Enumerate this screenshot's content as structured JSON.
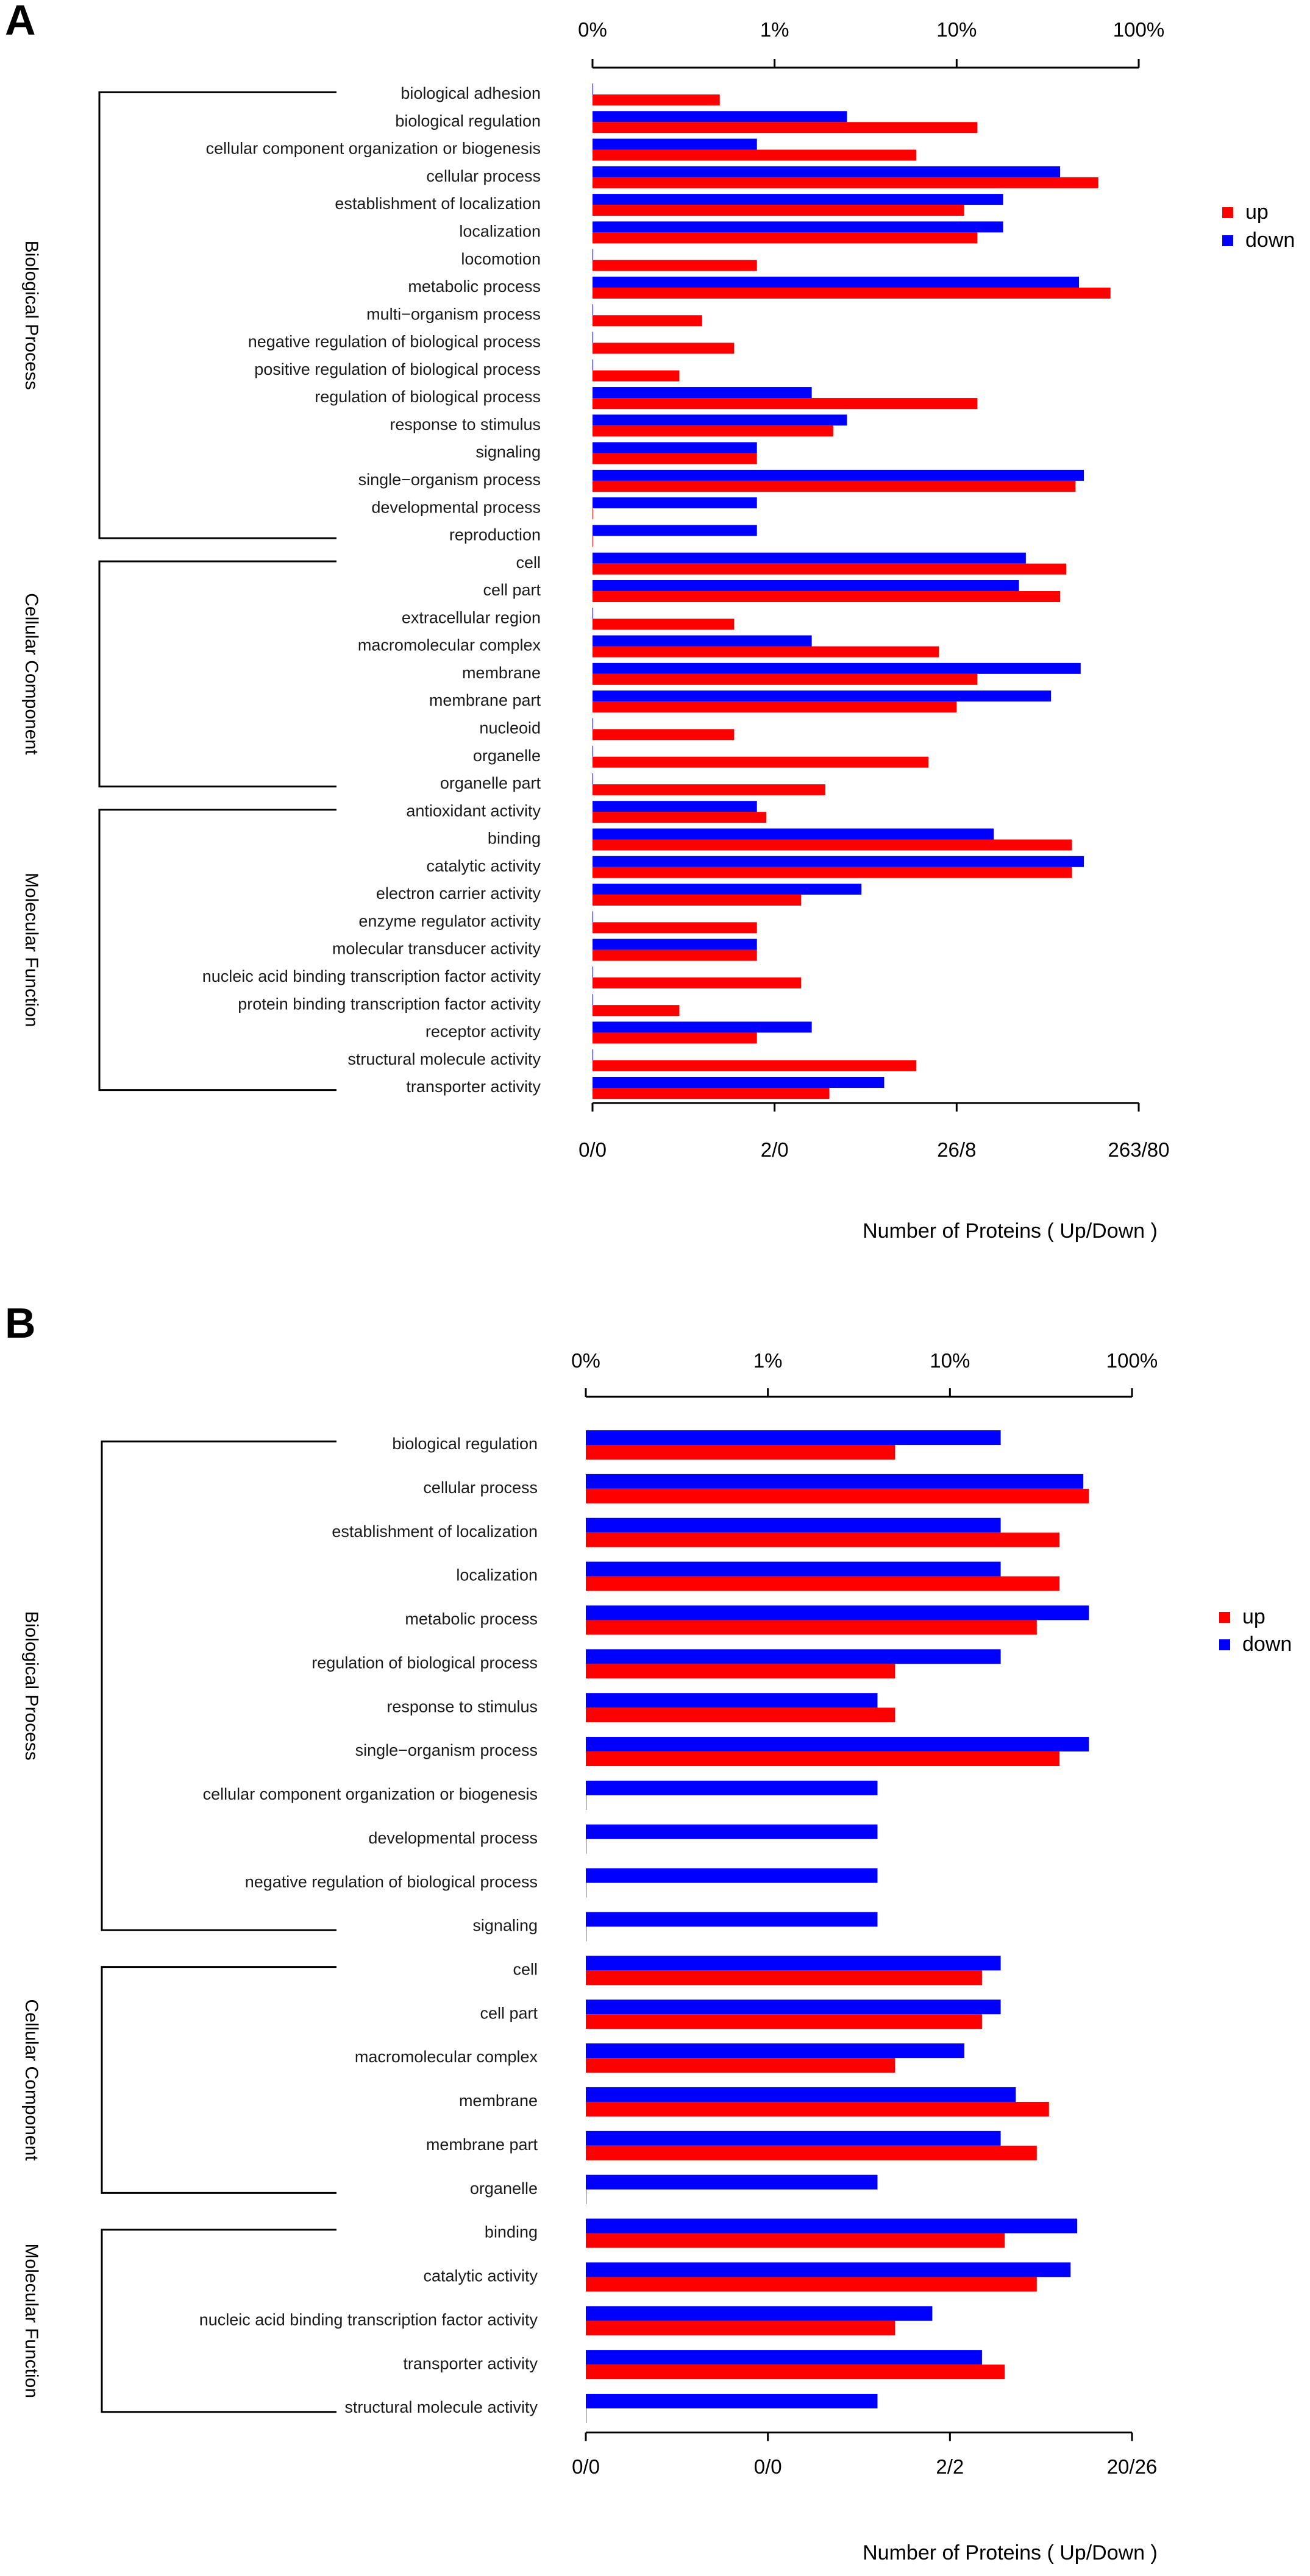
{
  "chart_data": [
    {
      "panel": "A",
      "type": "bar",
      "orientation": "horizontal",
      "scale": "log",
      "top_axis_ticks": [
        "0%",
        "1%",
        "10%",
        "100%"
      ],
      "bottom_axis_ticks": [
        "0/0",
        "2/0",
        "26/8",
        "263/80"
      ],
      "xlabel": "Number of Proteins ( Up/Down )",
      "legend": {
        "position": "top-right",
        "items": [
          {
            "name": "up",
            "color": "#ff0000"
          },
          {
            "name": "down",
            "color": "#0000ff"
          }
        ]
      },
      "categories": [
        "biological adhesion",
        "biological regulation",
        "cellular component organization or biogenesis",
        "cellular process",
        "establishment of localization",
        "localization",
        "locomotion",
        "metabolic process",
        "multi−organism process",
        "negative regulation of biological process",
        "positive regulation of biological process",
        "regulation of biological process",
        "response to stimulus",
        "signaling",
        "single−organism process",
        "developmental process",
        "reproduction",
        "cell",
        "cell part",
        "extracellular region",
        "macromolecular complex",
        "membrane",
        "membrane part",
        "nucleoid",
        "organelle",
        "organelle part",
        "antioxidant activity",
        "binding",
        "catalytic activity",
        "electron carrier activity",
        "enzyme regulator activity",
        "molecular transducer activity",
        "nucleic acid binding transcription factor activity",
        "protein binding transcription factor activity",
        "receptor activity",
        "structural molecule activity",
        "transporter activity"
      ],
      "groups": [
        {
          "name": "Biological Process",
          "first": 0,
          "last": 16
        },
        {
          "name": "Cellular Component",
          "first": 17,
          "last": 25
        },
        {
          "name": "Molecular Function",
          "first": 26,
          "last": 36
        }
      ],
      "series": [
        {
          "name": "up",
          "color": "#ff0000",
          "values": [
            0.5,
            13,
            6,
            60,
            11,
            13,
            0.8,
            70,
            0.4,
            0.6,
            0.3,
            13,
            2.1,
            0.8,
            45,
            0,
            0,
            40,
            37,
            0.6,
            8,
            13,
            10,
            0.6,
            7,
            1.9,
            0.9,
            43,
            43,
            1.4,
            0.8,
            0.8,
            1.4,
            0.3,
            0.8,
            6,
            2
          ]
        },
        {
          "name": "down",
          "color": "#0000ff",
          "values": [
            0,
            2.5,
            0.8,
            37,
            18,
            18,
            0,
            47,
            0,
            0,
            0,
            1.6,
            2.5,
            0.8,
            50,
            0.8,
            0.8,
            24,
            22,
            0,
            1.6,
            48,
            33,
            0,
            0,
            0,
            0.8,
            16,
            50,
            3,
            0,
            0.8,
            0,
            0,
            1.6,
            0,
            4
          ]
        }
      ]
    },
    {
      "panel": "B",
      "type": "bar",
      "orientation": "horizontal",
      "scale": "log",
      "top_axis_ticks": [
        "0%",
        "1%",
        "10%",
        "100%"
      ],
      "bottom_axis_ticks": [
        "0/0",
        "0/0",
        "2/2",
        "20/26"
      ],
      "xlabel": "Number of Proteins ( Up/Down )",
      "legend": {
        "position": "top-right",
        "items": [
          {
            "name": "up",
            "color": "#ff0000"
          },
          {
            "name": "down",
            "color": "#0000ff"
          }
        ]
      },
      "categories": [
        "biological regulation",
        "cellular process",
        "establishment of localization",
        "localization",
        "metabolic process",
        "regulation of biological process",
        "response to stimulus",
        "single−organism process",
        "cellular component organization or biogenesis",
        "developmental process",
        "negative regulation of biological process",
        "signaling",
        "cell",
        "cell part",
        "macromolecular complex",
        "membrane",
        "membrane part",
        "organelle",
        "binding",
        "catalytic activity",
        "nucleic acid binding transcription factor activity",
        "transporter activity",
        "structural molecule activity"
      ],
      "groups": [
        {
          "name": "Biological Process",
          "first": 0,
          "last": 11
        },
        {
          "name": "Cellular Component",
          "first": 12,
          "last": 17
        },
        {
          "name": "Molecular Function",
          "first": 18,
          "last": 22
        }
      ],
      "series": [
        {
          "name": "up",
          "color": "#ff0000",
          "values": [
            5,
            58,
            40,
            40,
            30,
            5,
            5,
            40,
            0,
            0,
            0,
            0,
            15,
            15,
            5,
            35,
            30,
            0,
            20,
            30,
            5,
            20,
            0
          ]
        },
        {
          "name": "down",
          "color": "#0000ff",
          "values": [
            19,
            54,
            19,
            19,
            58,
            19,
            4,
            58,
            4,
            4,
            4,
            4,
            19,
            19,
            12,
            23,
            19,
            4,
            50,
            46,
            8,
            15,
            4
          ]
        }
      ]
    }
  ],
  "panel_labels": [
    "A",
    "B"
  ]
}
